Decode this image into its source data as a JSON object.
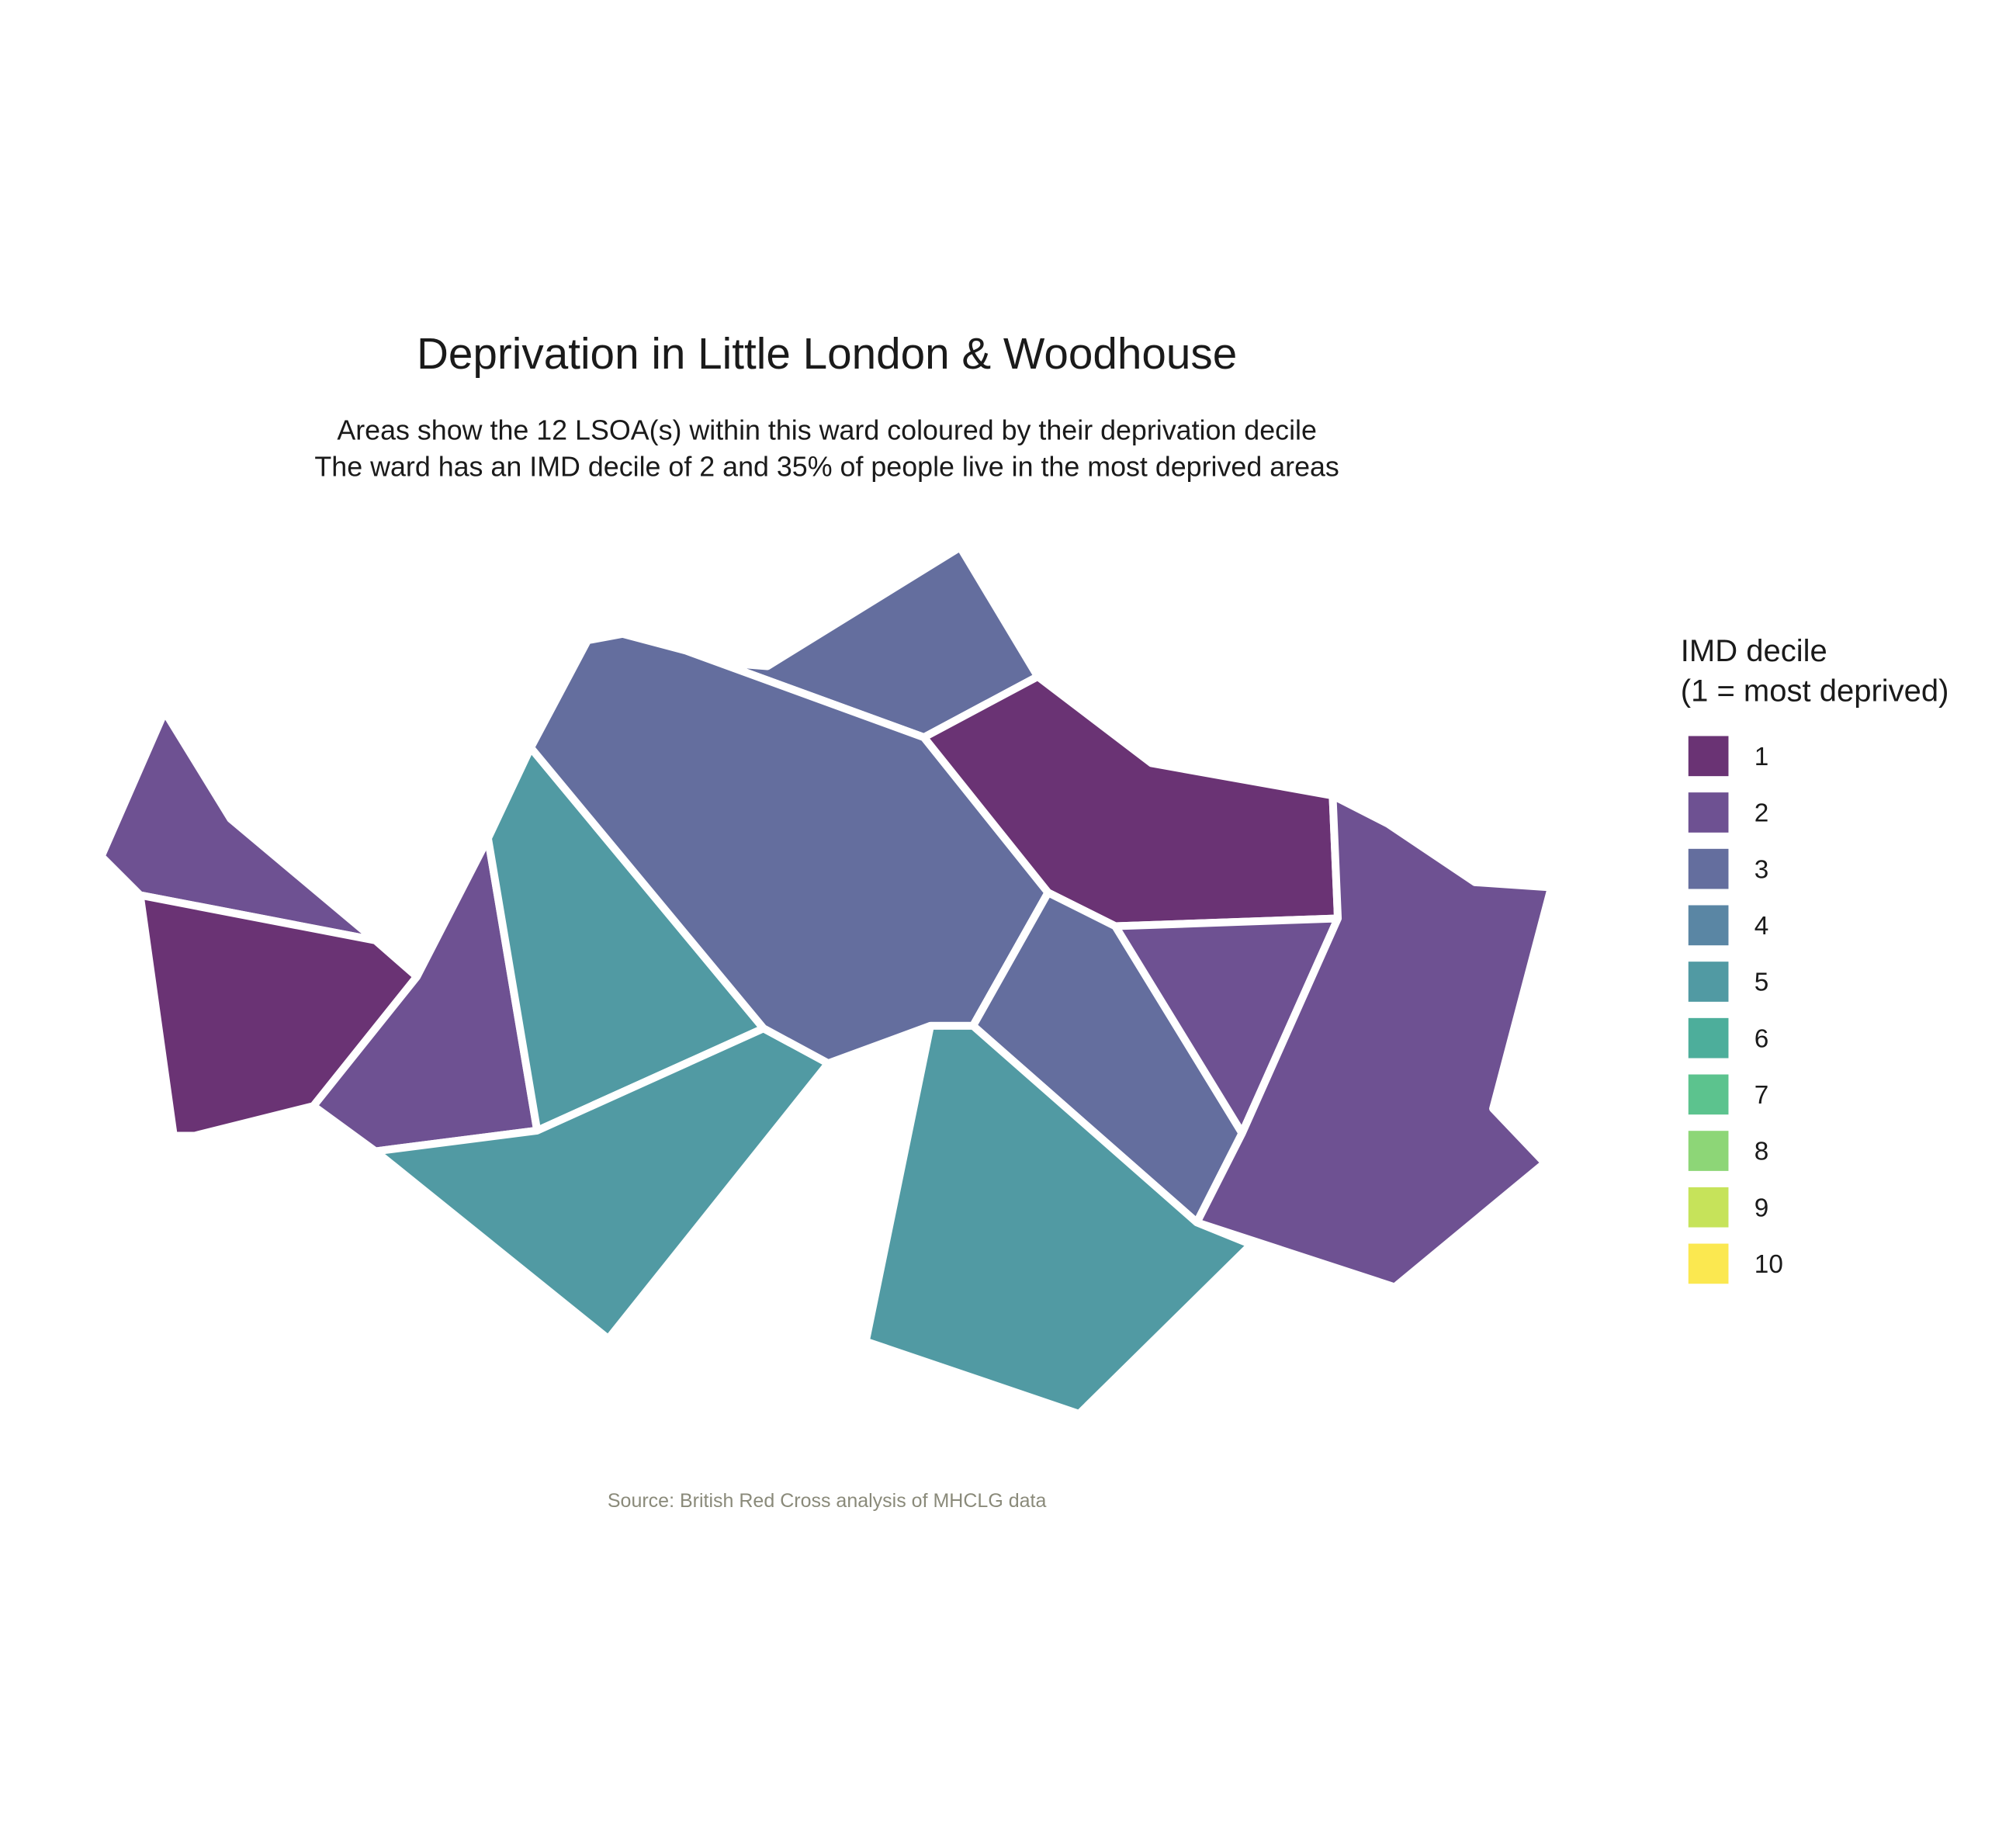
{
  "title": "Deprivation in Little London & Woodhouse",
  "subtitle": [
    "Areas show the 12 LSOA(s) within this ward coloured by their deprivation decile",
    "The ward has an IMD decile of 2 and 35% of people live in the most deprived areas"
  ],
  "caption": "Source: British Red Cross analysis of MHCLG data",
  "legend": {
    "title": [
      "IMD decile",
      "(1 = most deprived)"
    ],
    "items": [
      {
        "label": "1",
        "decile": 1,
        "color": "#6a3374"
      },
      {
        "label": "2",
        "decile": 2,
        "color": "#6e5192"
      },
      {
        "label": "3",
        "decile": 3,
        "color": "#646e9e"
      },
      {
        "label": "4",
        "decile": 4,
        "color": "#5a86a4"
      },
      {
        "label": "5",
        "decile": 5,
        "color": "#519aa3"
      },
      {
        "label": "6",
        "decile": 6,
        "color": "#4dae9b"
      },
      {
        "label": "7",
        "decile": 7,
        "color": "#5cc38e"
      },
      {
        "label": "8",
        "decile": 8,
        "color": "#8dd677"
      },
      {
        "label": "9",
        "decile": 9,
        "color": "#c6e35a"
      },
      {
        "label": "10",
        "decile": 10,
        "color": "#fbe850"
      }
    ]
  },
  "map_data": {
    "ward": "Little London & Woodhouse",
    "ward_imd_decile": 2,
    "pct_people_in_most_deprived_areas": 35,
    "lsoa_count": 12,
    "areas": [
      {
        "id": "lsoa-west-upper",
        "decile": 2
      },
      {
        "id": "lsoa-west-lower",
        "decile": 1
      },
      {
        "id": "lsoa-west-middle",
        "decile": 2
      },
      {
        "id": "lsoa-center-left",
        "decile": 5
      },
      {
        "id": "lsoa-south-left",
        "decile": 5
      },
      {
        "id": "lsoa-north-top",
        "decile": 3
      },
      {
        "id": "lsoa-center-large",
        "decile": 3
      },
      {
        "id": "lsoa-northeast",
        "decile": 1
      },
      {
        "id": "lsoa-center-right",
        "decile": 3
      },
      {
        "id": "lsoa-east-inner",
        "decile": 2
      },
      {
        "id": "lsoa-east-outer",
        "decile": 2
      },
      {
        "id": "lsoa-south-right",
        "decile": 5
      }
    ]
  }
}
